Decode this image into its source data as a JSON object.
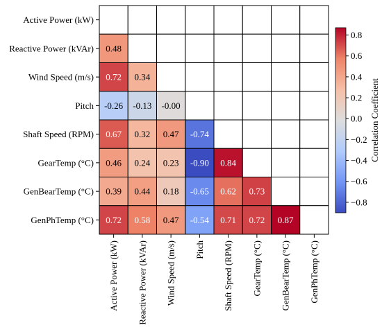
{
  "chart_data": {
    "type": "heatmap",
    "variables": [
      "Active Power (kW)",
      "Reactive Power (kVAr)",
      "Wind Speed (m/s)",
      "Pitch",
      "Shaft Speed (RPM)",
      "GearTemp (°C)",
      "GenBearTemp (°C)",
      "GenPhTemp (°C)"
    ],
    "mask": "upper-triangle-and-diagonal",
    "matrix": [
      [
        null,
        null,
        null,
        null,
        null,
        null,
        null,
        null
      ],
      [
        0.48,
        null,
        null,
        null,
        null,
        null,
        null,
        null
      ],
      [
        0.72,
        0.34,
        null,
        null,
        null,
        null,
        null,
        null
      ],
      [
        -0.26,
        -0.13,
        -0.0,
        null,
        null,
        null,
        null,
        null
      ],
      [
        0.67,
        0.32,
        0.47,
        -0.74,
        null,
        null,
        null,
        null
      ],
      [
        0.46,
        0.24,
        0.23,
        -0.9,
        0.84,
        null,
        null,
        null
      ],
      [
        0.39,
        0.44,
        0.18,
        -0.65,
        0.62,
        0.73,
        null,
        null
      ],
      [
        0.72,
        0.58,
        0.47,
        -0.54,
        0.71,
        0.72,
        0.87,
        null
      ]
    ],
    "cell_labels": [
      [],
      [
        "0.48"
      ],
      [
        "0.72",
        "0.34"
      ],
      [
        "-0.26",
        "-0.13",
        "-0.00"
      ],
      [
        "0.67",
        "0.32",
        "0.47",
        "-0.74"
      ],
      [
        "0.46",
        "0.24",
        "0.23",
        "-0.90",
        "0.84"
      ],
      [
        "0.39",
        "0.44",
        "0.18",
        "-0.65",
        "0.62",
        "0.73"
      ],
      [
        "0.72",
        "0.58",
        "0.47",
        "-0.54",
        "0.71",
        "0.72",
        "0.87"
      ]
    ],
    "colormap": "coolwarm",
    "colormap_stops": [
      "#3b4cc0",
      "#7396f5",
      "#b0cbfc",
      "#dddddd",
      "#f6bfa6",
      "#ee8468",
      "#b40426"
    ],
    "vmin": -0.9,
    "vmax": 0.87,
    "colorbar": {
      "label": "Correlation Coefficient",
      "ticks": [
        -0.8,
        -0.6,
        -0.4,
        -0.2,
        0.0,
        0.2,
        0.4,
        0.6,
        0.8
      ],
      "tick_labels": [
        "−0.8",
        "−0.6",
        "−0.4",
        "−0.2",
        "0.0",
        "0.2",
        "0.4",
        "0.6",
        "0.8"
      ],
      "placement": "right"
    },
    "grid": true
  }
}
